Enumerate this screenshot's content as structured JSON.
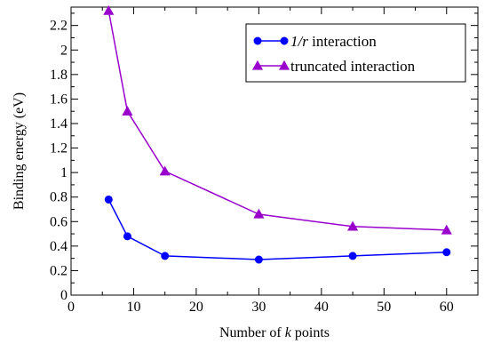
{
  "chart_data": {
    "type": "line",
    "title": "",
    "xlabel": {
      "prefix": "Number of ",
      "italic": "k",
      "suffix": " points"
    },
    "ylabel": "Binding energy (eV)",
    "xlim": [
      0,
      65
    ],
    "ylim": [
      0,
      2.35
    ],
    "xticks": [
      0,
      10,
      20,
      30,
      40,
      50,
      60
    ],
    "xtick_labels": [
      "0",
      "10",
      "20",
      "30",
      "40",
      "50",
      "60"
    ],
    "yticks": [
      0,
      0.2,
      0.4,
      0.6,
      0.8,
      1.0,
      1.2,
      1.4,
      1.6,
      1.8,
      2.0,
      2.2
    ],
    "ytick_labels": [
      "0",
      "0.2",
      "0.4",
      "0.6",
      "0.8",
      "1",
      "1.2",
      "1.4",
      "1.6",
      "1.8",
      "2",
      "2.2"
    ],
    "grid": false,
    "legend_position": "top-right",
    "series": [
      {
        "name": "1/r interaction",
        "name_italic": "1/r",
        "name_rest": " interaction",
        "marker": "circle",
        "color": "#0000ff",
        "x": [
          6,
          9,
          15,
          30,
          45,
          60
        ],
        "y": [
          0.78,
          0.48,
          0.32,
          0.29,
          0.32,
          0.35
        ]
      },
      {
        "name": "truncated interaction",
        "name_italic": "",
        "name_rest": "truncated interaction",
        "marker": "triangle",
        "color": "#9900cc",
        "x": [
          6,
          9,
          15,
          30,
          45,
          60
        ],
        "y": [
          2.32,
          1.5,
          1.01,
          0.66,
          0.56,
          0.53
        ]
      }
    ]
  }
}
